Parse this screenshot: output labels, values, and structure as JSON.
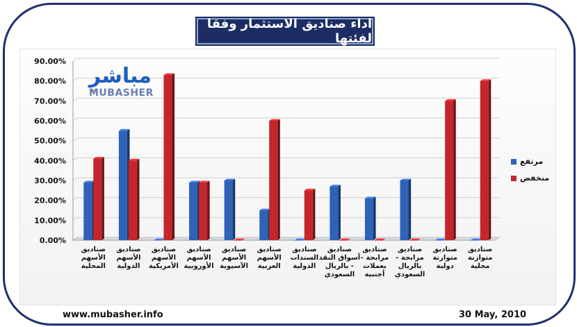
{
  "chart_data": {
    "type": "bar",
    "title": "اداء صناديق الاستثمار وفقا لفئتها",
    "categories": [
      [
        "صناديق",
        "الأسهم",
        "المحلية"
      ],
      [
        "صناديق",
        "الأسهم",
        "الدولية"
      ],
      [
        "صناديق",
        "الأسهم",
        "الأمريكية"
      ],
      [
        "صناديق",
        "الأسهم",
        "الأوروبية"
      ],
      [
        "صناديق",
        "الأسهم",
        "الآسيوية"
      ],
      [
        "صناديق",
        "الأسهم",
        "العربية"
      ],
      [
        "صناديق",
        "السندات",
        "الدولية"
      ],
      [
        "صناديق",
        "أسواق النقد",
        "- بالريال",
        "السعودي"
      ],
      [
        "صناديق",
        "مرابحة -",
        "بعملات",
        "أجنبية"
      ],
      [
        "صناديق",
        "مرابحة -",
        "بالريال",
        "السعودي"
      ],
      [
        "صناديق",
        "متوازنة",
        "دولية"
      ],
      [
        "صناديق",
        "متوازنة",
        "محلية"
      ]
    ],
    "series": [
      {
        "name": "مرتفع",
        "color": "#2f63b8",
        "values": [
          29,
          55,
          0,
          29,
          30,
          15,
          0,
          27,
          21,
          30,
          0,
          0
        ]
      },
      {
        "name": "منخفض",
        "color": "#c4262b",
        "values": [
          41,
          40,
          83,
          29,
          0,
          60,
          25,
          0,
          0,
          0,
          70,
          80
        ]
      }
    ],
    "ylim": [
      0,
      90
    ],
    "yticks": [
      "0.00%",
      "10.00%",
      "20.00%",
      "30.00%",
      "40.00%",
      "50.00%",
      "60.00%",
      "70.00%",
      "80.00%",
      "90.00%"
    ],
    "grid": true,
    "legend_position": "right"
  },
  "logo": {
    "arabic": "مباشر",
    "latin": "MUBASHER",
    "tm": "TM"
  },
  "footer": {
    "website": "www.mubasher.info",
    "date": "30 May, 2010"
  }
}
